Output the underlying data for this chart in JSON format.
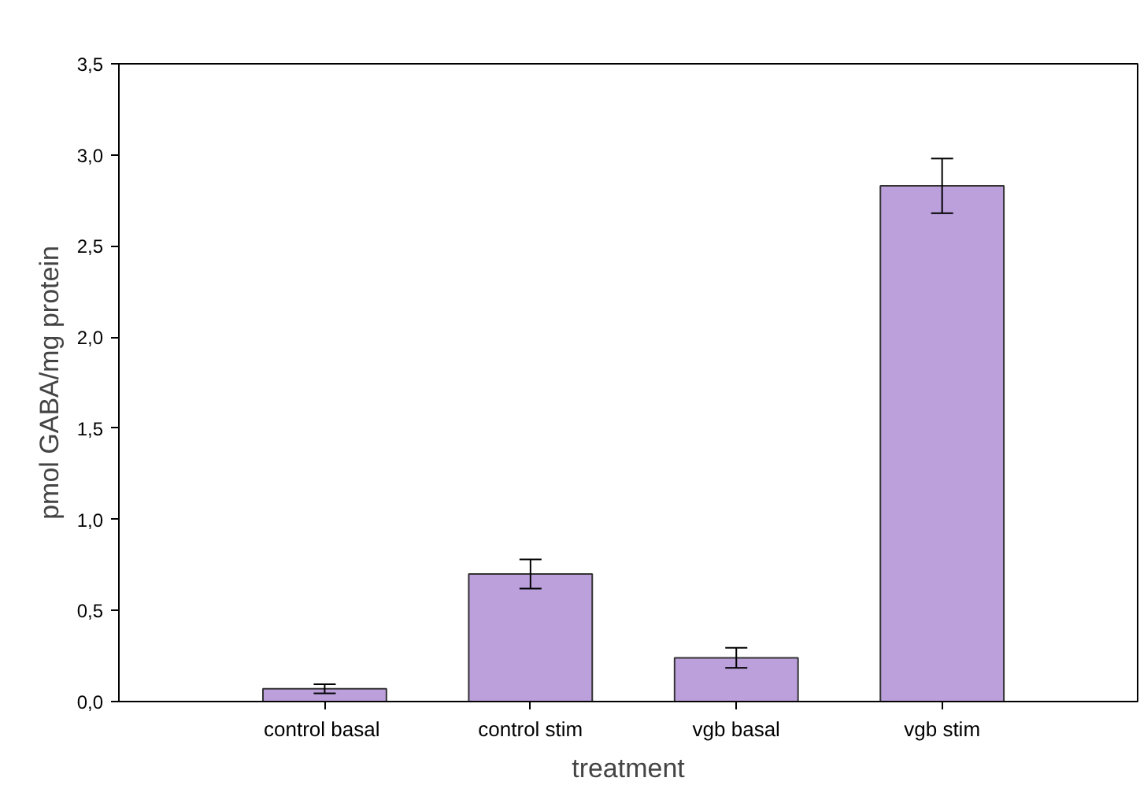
{
  "chart_data": {
    "type": "bar",
    "xlabel": "treatment",
    "ylabel": "pmol GABA/mg protein",
    "categories": [
      "control  basal",
      "control stim",
      "vgb basal",
      "vgb stim"
    ],
    "values": [
      0.07,
      0.7,
      0.24,
      2.83
    ],
    "errors": [
      0.025,
      0.08,
      0.055,
      0.15
    ],
    "color": "#bca0dc",
    "ylim": [
      0,
      3.5
    ],
    "yticks": [
      {
        "value": 0,
        "label": "0,0"
      },
      {
        "value": 0.5,
        "label": "0,5"
      },
      {
        "value": 1,
        "label": "1,0"
      },
      {
        "value": 1.5,
        "label": "1,5"
      },
      {
        "value": 2,
        "label": "2,0"
      },
      {
        "value": 2.5,
        "label": "2,5"
      },
      {
        "value": 3,
        "label": "3,0"
      },
      {
        "value": 3.5,
        "label": "3,5"
      }
    ],
    "grid": false
  }
}
